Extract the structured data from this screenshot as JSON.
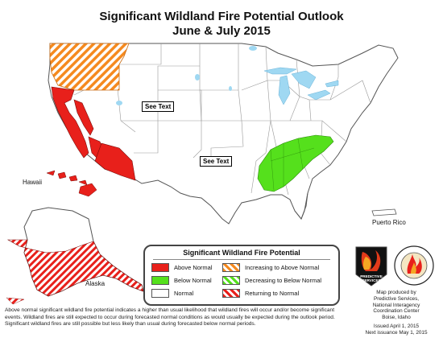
{
  "title_line1": "Significant Wildland Fire Potential Outlook",
  "title_line2": "June & July 2015",
  "see_text_label": "See Text",
  "labels": {
    "hawaii": "Hawaii",
    "alaska": "Alaska",
    "puerto_rico": "Puerto Rico"
  },
  "legend": {
    "title": "Significant Wildland Fire Potential",
    "items": {
      "above_normal": "Above Normal",
      "below_normal": "Below Normal",
      "normal": "Normal",
      "increasing_above": "Increasing to Above Normal",
      "decreasing_below": "Decreasing to Below Normal",
      "returning_normal": "Returning to Normal"
    }
  },
  "colors": {
    "above_normal": "#e8201b",
    "below_normal": "#55e01c",
    "normal": "#ffffff",
    "increasing_stripe": "#f58a1f",
    "water": "#9fd8f2"
  },
  "footnote": "Above normal significant wildland fire potential indicates a higher than usual likelihood that wildland fires will occur and/or become significant events.  Wildland fires are still expected to occur during forecasted normal conditions as would usually be expected during the outlook period.  Significant wildland fires are still possible but less likely than usual during forecasted below normal periods.",
  "credit": {
    "line1": "Map produced by",
    "line2": "Predictive Services,",
    "line3": "National Interagency",
    "line4": "Coordination Center",
    "line5": "Boise, Idaho",
    "issued": "Issued April 1, 2015",
    "next": "Next issuance May 1, 2015"
  },
  "logos": {
    "predictive": "PREDICTIVE SERVICES",
    "nifc": "NATIONAL INTERAGENCY FIRE CENTER"
  }
}
